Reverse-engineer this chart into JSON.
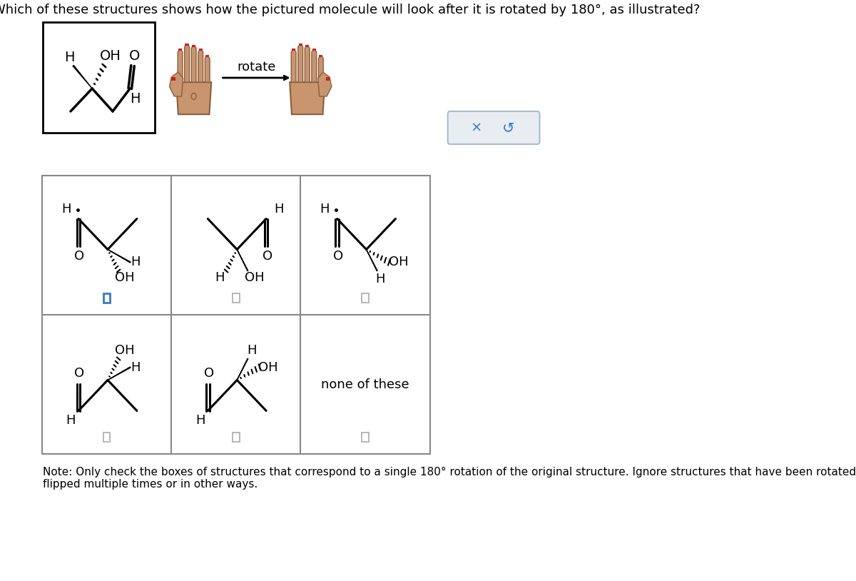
{
  "title": "Which of these structures shows how the pictured molecule will look after it is rotated by 180°, as illustrated?",
  "note": "Note: Only check the boxes of structures that correspond to a single 180° rotation of the original structure. Ignore structures that have been rotated or\nflipped multiple times or in other ways.",
  "rotate_label": "rotate",
  "none_of_these": "none of these",
  "background_color": "#ffffff",
  "grid_line_color": "#888888",
  "hand_skin": "#c8956e",
  "hand_edge": "#8b5e3c",
  "hand_nail": "#cc2020",
  "checkbox_selected_color": "#3a7abf",
  "checkbox_unselected_color": "#aaaaaa",
  "btn_bg": "#e8edf2",
  "btn_edge": "#aabbcc",
  "btn_text": "#3a7abf"
}
